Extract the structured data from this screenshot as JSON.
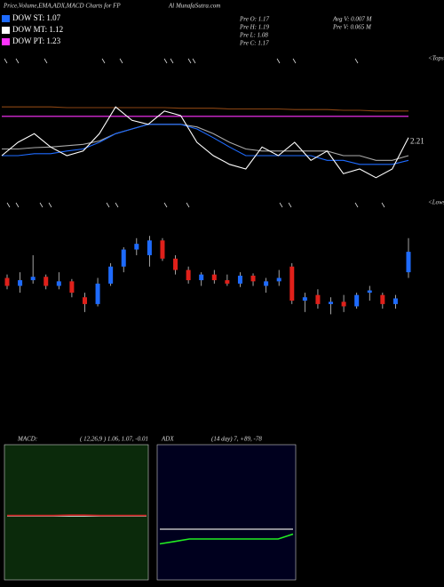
{
  "header": {
    "title": "Price,Volume,EMA,ADX,MACD Charts for FP",
    "site": "Al MunafaSutra.com"
  },
  "stats": [
    "Pre O: 1.17",
    "Pre H: 1.19",
    "Pre L: 1.08",
    "Pre C: 1.17",
    "Avg V: 0.007 M",
    "Pre V: 0.065 M"
  ],
  "legend": [
    {
      "label": "DOW ST: 1.07",
      "color": "#1e6bff"
    },
    {
      "label": "DOW MT: 1.12",
      "color": "#ffffff"
    },
    {
      "label": "DOW PT: 1.23",
      "color": "#ff33ff"
    }
  ],
  "markers": {
    "tops": "<Tops",
    "lows": "<Lows"
  },
  "chart_data": [
    {
      "type": "line",
      "ylim": [
        1.6,
        2.8
      ],
      "annotation": "2.21",
      "series": [
        {
          "color": "#8b4513",
          "values": [
            2.73,
            2.73,
            2.73,
            2.73,
            2.72,
            2.72,
            2.72,
            2.72,
            2.72,
            2.72,
            2.72,
            2.71,
            2.71,
            2.71,
            2.7,
            2.7,
            2.7,
            2.7,
            2.69,
            2.69,
            2.69,
            2.68,
            2.68,
            2.67,
            2.67,
            2.67
          ]
        },
        {
          "color": "#ff33ff",
          "values": [
            2.59,
            2.59,
            2.59,
            2.59,
            2.59,
            2.59,
            2.59,
            2.59,
            2.59,
            2.59,
            2.59,
            2.59,
            2.59,
            2.59,
            2.59,
            2.59,
            2.59,
            2.59,
            2.59,
            2.59,
            2.59,
            2.59,
            2.59,
            2.59,
            2.59,
            2.59
          ]
        },
        {
          "color": "#aaaaaa",
          "values": [
            2.1,
            2.1,
            2.12,
            2.13,
            2.15,
            2.17,
            2.22,
            2.33,
            2.4,
            2.47,
            2.47,
            2.47,
            2.43,
            2.33,
            2.2,
            2.1,
            2.07,
            2.07,
            2.07,
            2.07,
            2.07,
            2.0,
            2.0,
            1.93,
            1.93,
            2.0
          ]
        },
        {
          "color": "#1e6bff",
          "values": [
            2.0,
            2.0,
            2.03,
            2.03,
            2.07,
            2.1,
            2.2,
            2.33,
            2.4,
            2.47,
            2.47,
            2.47,
            2.4,
            2.27,
            2.13,
            2.0,
            2.0,
            2.0,
            2.0,
            2.0,
            1.93,
            1.93,
            1.87,
            1.87,
            1.87,
            1.93
          ]
        },
        {
          "color": "#ffffff",
          "values": [
            2.0,
            2.2,
            2.33,
            2.13,
            2.0,
            2.07,
            2.33,
            2.73,
            2.53,
            2.47,
            2.67,
            2.6,
            2.2,
            2.0,
            1.87,
            1.8,
            2.13,
            2.0,
            2.2,
            1.93,
            2.07,
            1.73,
            1.8,
            1.67,
            1.8,
            2.27
          ]
        }
      ]
    },
    {
      "type": "candlestick",
      "ylim": [
        0.9,
        1.8
      ],
      "up_color": "#1e6bff",
      "down_color": "#e0201a",
      "open": [
        1.35,
        1.28,
        1.33,
        1.36,
        1.28,
        1.32,
        1.18,
        1.12,
        1.3,
        1.45,
        1.6,
        1.55,
        1.68,
        1.52,
        1.42,
        1.33,
        1.38,
        1.33,
        1.3,
        1.37,
        1.28,
        1.32,
        1.45,
        1.15,
        1.2,
        1.12,
        1.14,
        1.1,
        1.22,
        1.2,
        1.12,
        1.4
      ],
      "high": [
        1.38,
        1.4,
        1.55,
        1.38,
        1.4,
        1.34,
        1.22,
        1.35,
        1.48,
        1.62,
        1.7,
        1.72,
        1.7,
        1.55,
        1.45,
        1.4,
        1.42,
        1.38,
        1.4,
        1.39,
        1.35,
        1.42,
        1.48,
        1.22,
        1.25,
        1.18,
        1.2,
        1.22,
        1.28,
        1.22,
        1.2,
        1.7
      ],
      "low": [
        1.25,
        1.22,
        1.3,
        1.25,
        1.25,
        1.18,
        1.05,
        1.1,
        1.28,
        1.4,
        1.55,
        1.45,
        1.5,
        1.38,
        1.3,
        1.28,
        1.3,
        1.28,
        1.27,
        1.28,
        1.22,
        1.28,
        1.12,
        1.05,
        1.08,
        1.03,
        1.05,
        1.08,
        1.15,
        1.08,
        1.08,
        1.35
      ],
      "close": [
        1.28,
        1.33,
        1.36,
        1.28,
        1.32,
        1.22,
        1.12,
        1.3,
        1.45,
        1.6,
        1.65,
        1.68,
        1.52,
        1.42,
        1.33,
        1.38,
        1.33,
        1.3,
        1.37,
        1.32,
        1.32,
        1.35,
        1.15,
        1.18,
        1.12,
        1.14,
        1.1,
        1.2,
        1.24,
        1.12,
        1.17,
        1.58
      ]
    },
    {
      "type": "line",
      "title": "MACD:",
      "subtitle": "( 12,26,9 ) 1.06, 1.07, -0.01",
      "ylim": [
        -1,
        1
      ],
      "series": [
        {
          "color": "#ffffff",
          "values": [
            0,
            0,
            0,
            0,
            0,
            0,
            0,
            0,
            0,
            0
          ]
        },
        {
          "color": "#cc2222",
          "values": [
            0.01,
            0.01,
            0.01,
            0.01,
            0.02,
            0.02,
            0.01,
            0.01,
            0.01,
            0.01
          ]
        }
      ]
    },
    {
      "type": "line",
      "title": "ADX",
      "subtitle": "(14  day) 7, +89, -78",
      "ylim": [
        -100,
        100
      ],
      "series": [
        {
          "color": "#bbbbbb",
          "values": [
            0,
            0,
            0,
            0,
            0,
            0,
            0,
            0,
            0,
            0
          ]
        },
        {
          "color": "#22ee22",
          "values": [
            -30,
            -25,
            -20,
            -20,
            -20,
            -20,
            -20,
            -20,
            -20,
            -10
          ]
        }
      ]
    }
  ]
}
